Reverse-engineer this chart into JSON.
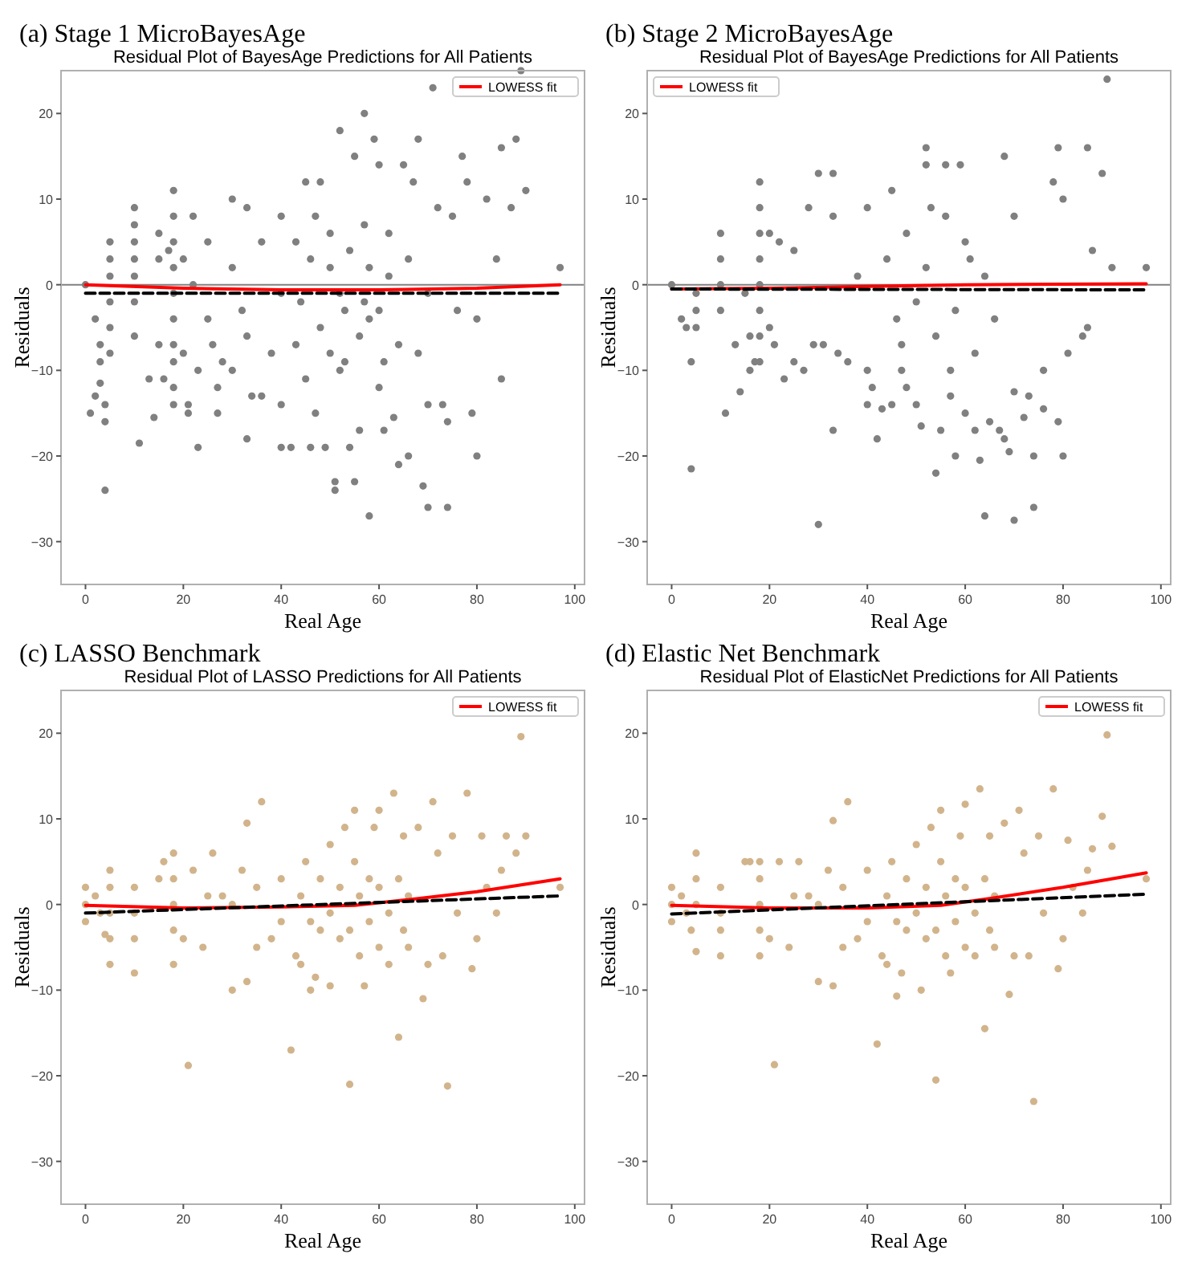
{
  "chart_data": [
    {
      "type": "scatter",
      "title": "(a) Stage 1 MicroBayesAge",
      "subtitle": "Residual Plot of BayesAge Predictions for All Patients",
      "xlabel": "Real Age",
      "ylabel": "Residuals",
      "xlim": [
        -5,
        102
      ],
      "ylim": [
        -35,
        25
      ],
      "xticks": [
        0,
        20,
        40,
        60,
        80,
        100
      ],
      "yticks": [
        -30,
        -20,
        -10,
        0,
        10,
        20
      ],
      "legend": "top right",
      "ref_lines": [
        {
          "axis": "y",
          "value": 0,
          "color": "#808080"
        }
      ],
      "series": [
        {
          "type": "scatter",
          "color": "#808080",
          "x": [
            0,
            1,
            2,
            2,
            3,
            3,
            3,
            4,
            4,
            4,
            5,
            5,
            5,
            5,
            5,
            5,
            10,
            10,
            10,
            10,
            10,
            10,
            10,
            11,
            13,
            14,
            15,
            15,
            15,
            16,
            17,
            18,
            18,
            18,
            18,
            18,
            18,
            18,
            18,
            18,
            18,
            20,
            20,
            21,
            21,
            22,
            22,
            23,
            23,
            25,
            25,
            26,
            27,
            27,
            28,
            30,
            30,
            30,
            32,
            33,
            33,
            33,
            34,
            36,
            36,
            38,
            40,
            40,
            40,
            40,
            42,
            43,
            45,
            45,
            46,
            47,
            48,
            49,
            50,
            50,
            51,
            51,
            52,
            52,
            53,
            54,
            55,
            55,
            56,
            57,
            57,
            58,
            58,
            59,
            60,
            60,
            61,
            62,
            63,
            64,
            65,
            66,
            67,
            68,
            68,
            69,
            70,
            70,
            71,
            72,
            73,
            74,
            74,
            75,
            76,
            77,
            78,
            79,
            80,
            80,
            82,
            84,
            85,
            85,
            87,
            88,
            89,
            90,
            97,
            44,
            46,
            48,
            50,
            52,
            54,
            56,
            58,
            60,
            62,
            64,
            66,
            70,
            47,
            53,
            57,
            61,
            43
          ],
          "values": [
            0,
            -15,
            -13,
            -4,
            -11.5,
            -9,
            -7,
            -16,
            -24,
            -14,
            5,
            3,
            1,
            -2,
            -5,
            -8,
            9,
            7,
            5,
            3,
            1,
            -2,
            -6,
            -18.5,
            -11,
            -15.5,
            6,
            3,
            -7,
            -11,
            4,
            11,
            8,
            5,
            2,
            -1,
            -4,
            -7,
            -9,
            -12,
            -14,
            3,
            -8,
            -14,
            -15,
            8,
            0,
            -19,
            -10,
            5,
            -4,
            -7,
            -12,
            -15,
            -9,
            10,
            2,
            -10,
            -3,
            9,
            -6,
            -18,
            -13,
            -13,
            5,
            -8,
            8,
            -1,
            -14,
            -19,
            -19,
            5,
            12,
            -11,
            -19,
            -15,
            12,
            -19,
            2,
            -8,
            -24,
            -23,
            18,
            -10,
            -3,
            -19,
            15,
            -23,
            -17,
            20,
            7,
            -27,
            -4,
            17,
            14,
            -12,
            -17,
            1,
            -15.5,
            -21,
            14,
            -20,
            12,
            17,
            -8,
            -23.5,
            -26,
            -14,
            23,
            9,
            -14,
            -26,
            -16,
            8,
            -3,
            15,
            12,
            -15,
            -20,
            -4,
            10,
            3,
            16,
            -11,
            9,
            17,
            25,
            11,
            2,
            -2,
            3,
            -5,
            6,
            -1,
            4,
            -6,
            2,
            -3,
            6,
            -7,
            3,
            -1,
            8,
            -9,
            -2,
            -9,
            -7
          ]
        },
        {
          "type": "line",
          "name": "LOWESS fit",
          "color": "#ff0000",
          "x": [
            0,
            20,
            40,
            60,
            80,
            97
          ],
          "values": [
            0,
            -0.4,
            -0.6,
            -0.6,
            -0.4,
            0
          ]
        },
        {
          "type": "line",
          "color": "#000000",
          "line_style": "dashed",
          "x": [
            0,
            97
          ],
          "values": [
            -1,
            -1
          ]
        }
      ]
    },
    {
      "type": "scatter",
      "title": "(b) Stage 2 MicroBayesAge",
      "subtitle": "Residual Plot of BayesAge Predictions for All Patients",
      "xlabel": "Real Age",
      "ylabel": "Residuals",
      "xlim": [
        -5,
        102
      ],
      "ylim": [
        -35,
        25
      ],
      "xticks": [
        0,
        20,
        40,
        60,
        80,
        100
      ],
      "yticks": [
        -30,
        -20,
        -10,
        0,
        10,
        20
      ],
      "legend": "top left",
      "ref_lines": [
        {
          "axis": "y",
          "value": 0,
          "color": "#808080"
        }
      ],
      "series": [
        {
          "type": "scatter",
          "color": "#808080",
          "x": [
            0,
            2,
            3,
            4,
            4,
            5,
            5,
            5,
            10,
            10,
            10,
            10,
            11,
            13,
            14,
            15,
            16,
            16,
            17,
            18,
            18,
            18,
            18,
            18,
            18,
            18,
            18,
            20,
            20,
            21,
            22,
            23,
            25,
            25,
            27,
            28,
            29,
            30,
            30,
            31,
            33,
            33,
            33,
            34,
            36,
            38,
            40,
            40,
            40,
            41,
            42,
            43,
            45,
            45,
            47,
            48,
            50,
            51,
            52,
            52,
            54,
            55,
            56,
            57,
            58,
            59,
            60,
            62,
            63,
            64,
            65,
            67,
            68,
            68,
            69,
            70,
            70,
            72,
            73,
            74,
            74,
            76,
            76,
            78,
            79,
            79,
            80,
            80,
            81,
            84,
            85,
            85,
            86,
            88,
            89,
            90,
            97,
            44,
            46,
            48,
            50,
            52,
            54,
            56,
            58,
            60,
            62,
            64,
            66,
            70,
            47,
            53,
            57,
            61
          ],
          "values": [
            0,
            -4,
            -5,
            -9,
            -21.5,
            -1,
            -3,
            -5,
            6,
            3,
            0,
            -3,
            -15,
            -7,
            -12.5,
            -1,
            -6,
            -10,
            -9,
            12,
            9,
            6,
            3,
            0,
            -3,
            -6,
            -9,
            6,
            -5,
            -7,
            5,
            -11,
            4,
            -9,
            -10,
            9,
            -7,
            13,
            -28,
            -7,
            13,
            -17,
            8,
            -8,
            -9,
            1,
            9,
            -10,
            -14,
            -12,
            -18,
            -14.5,
            11,
            -14,
            -10,
            -12,
            -14,
            -16.5,
            16,
            14,
            -22,
            -17,
            14,
            -13,
            -20,
            14,
            -15,
            -17,
            -20.5,
            -27,
            -16,
            -17,
            15,
            -18,
            -19.5,
            -27.5,
            -12.5,
            -15.5,
            -13,
            -26,
            -20,
            -10,
            -14.5,
            12,
            16,
            -16,
            -20,
            10,
            -8,
            -6,
            16,
            -5,
            4,
            13,
            24,
            2,
            2,
            3,
            -4,
            6,
            -2,
            2,
            -6,
            8,
            -3,
            5,
            -8,
            1,
            -4,
            8,
            -7,
            9,
            -10,
            3
          ]
        },
        {
          "type": "line",
          "name": "LOWESS fit",
          "color": "#ff0000",
          "x": [
            0,
            20,
            40,
            60,
            97
          ],
          "values": [
            -0.5,
            -0.4,
            -0.2,
            0,
            0.1
          ]
        },
        {
          "type": "line",
          "color": "#000000",
          "line_style": "dashed",
          "x": [
            0,
            97
          ],
          "values": [
            -0.5,
            -0.6
          ]
        }
      ]
    },
    {
      "type": "scatter",
      "title": "(c) LASSO Benchmark",
      "subtitle": "Residual Plot of LASSO Predictions for All Patients",
      "xlabel": "Real Age",
      "ylabel": "Residuals",
      "xlim": [
        -5,
        102
      ],
      "ylim": [
        -35,
        25
      ],
      "xticks": [
        0,
        20,
        40,
        60,
        80,
        100
      ],
      "yticks": [
        -30,
        -20,
        -10,
        0,
        10,
        20
      ],
      "legend": "top right",
      "series": [
        {
          "type": "scatter",
          "color": "#d2b48c",
          "x": [
            0,
            0,
            0,
            2,
            3,
            4,
            5,
            5,
            5,
            5,
            5,
            10,
            10,
            10,
            10,
            15,
            16,
            18,
            18,
            18,
            18,
            18,
            20,
            21,
            22,
            24,
            26,
            28,
            30,
            32,
            33,
            33,
            35,
            36,
            38,
            40,
            42,
            43,
            44,
            45,
            46,
            47,
            48,
            50,
            50,
            52,
            53,
            54,
            55,
            56,
            57,
            58,
            59,
            60,
            60,
            62,
            63,
            64,
            65,
            66,
            68,
            69,
            70,
            71,
            72,
            73,
            74,
            75,
            76,
            78,
            79,
            80,
            81,
            82,
            84,
            85,
            86,
            88,
            89,
            90,
            97,
            44,
            46,
            48,
            50,
            52,
            54,
            56,
            58,
            60,
            62,
            64,
            66,
            40,
            30,
            25,
            35,
            55,
            65
          ],
          "values": [
            2,
            0,
            -2,
            1,
            -1,
            -3.5,
            4,
            2,
            -1,
            -4,
            -7,
            2,
            -1,
            -4,
            -8,
            3,
            5,
            6,
            3,
            0,
            -3,
            -7,
            -4,
            -18.8,
            4,
            -5,
            6,
            1,
            -10,
            4,
            9.5,
            -9,
            -5,
            12,
            -4,
            3,
            -17,
            -6,
            -7,
            5,
            -10,
            -8.5,
            -3,
            7,
            -9.5,
            -4,
            9,
            -21,
            11,
            -6,
            -9.5,
            3,
            9,
            11,
            -5,
            -7,
            13,
            -15.5,
            8,
            -5,
            9,
            -11,
            -7,
            12,
            6,
            -6,
            -21.2,
            8,
            -1,
            13,
            -7.5,
            -4,
            8,
            2,
            -1,
            4,
            8,
            6,
            19.6,
            8,
            2,
            1,
            -2,
            3,
            -1,
            2,
            -3,
            1,
            -2,
            2,
            -1,
            3,
            1,
            -2,
            0,
            1,
            2,
            5,
            -3
          ]
        },
        {
          "type": "line",
          "name": "LOWESS fit",
          "color": "#ff0000",
          "x": [
            0,
            20,
            40,
            55,
            65,
            80,
            97
          ],
          "values": [
            -0.1,
            -0.4,
            -0.3,
            -0.1,
            0.5,
            1.5,
            3
          ]
        },
        {
          "type": "line",
          "color": "#000000",
          "line_style": "dashed",
          "x": [
            0,
            97
          ],
          "values": [
            -1,
            1
          ]
        }
      ]
    },
    {
      "type": "scatter",
      "title": "(d) Elastic Net Benchmark",
      "subtitle": "Residual Plot of ElasticNet Predictions for All Patients",
      "xlabel": "Real Age",
      "ylabel": "Residuals",
      "xlim": [
        -5,
        102
      ],
      "ylim": [
        -35,
        25
      ],
      "xticks": [
        0,
        20,
        40,
        60,
        80,
        100
      ],
      "yticks": [
        -30,
        -20,
        -10,
        0,
        10,
        20
      ],
      "legend": "top right",
      "series": [
        {
          "type": "scatter",
          "color": "#d2b48c",
          "x": [
            0,
            0,
            0,
            2,
            3,
            4,
            5,
            5,
            5,
            5,
            10,
            10,
            10,
            10,
            15,
            16,
            18,
            18,
            18,
            18,
            18,
            20,
            21,
            22,
            24,
            26,
            28,
            30,
            32,
            33,
            33,
            35,
            36,
            38,
            40,
            42,
            43,
            44,
            45,
            46,
            47,
            48,
            50,
            51,
            52,
            53,
            54,
            55,
            56,
            57,
            58,
            59,
            60,
            60,
            62,
            63,
            64,
            65,
            66,
            68,
            69,
            70,
            71,
            72,
            73,
            74,
            75,
            76,
            78,
            79,
            80,
            81,
            82,
            84,
            85,
            86,
            88,
            89,
            90,
            97,
            44,
            46,
            48,
            50,
            52,
            54,
            56,
            58,
            60,
            62,
            64,
            66,
            40,
            30,
            25,
            35,
            55,
            65
          ],
          "values": [
            2,
            0,
            -2,
            1,
            -1,
            -3,
            6,
            3,
            0,
            -5.5,
            2,
            -1,
            -3,
            -6,
            5,
            5,
            5,
            3,
            0,
            -3,
            -6,
            -4,
            -18.7,
            5,
            -5,
            5,
            1,
            -9,
            4,
            9.8,
            -9.5,
            -5,
            12,
            -4,
            4,
            -16.3,
            -6,
            -7,
            5,
            -10.7,
            -8,
            -3,
            7,
            -10,
            -4,
            9,
            -20.5,
            11,
            -6,
            -8,
            3,
            8,
            11.7,
            -5,
            -6,
            13.5,
            -14.5,
            8,
            -5,
            9.5,
            -10.5,
            -6,
            11,
            6,
            -6,
            -23,
            8,
            -1,
            13.5,
            -7.5,
            -4,
            7.5,
            2,
            -1,
            4,
            6.5,
            10.3,
            19.8,
            6.8,
            3,
            1,
            -2,
            3,
            -1,
            2,
            -3,
            1,
            -2,
            2,
            -1,
            3,
            1,
            -2,
            0,
            1,
            2,
            5,
            -3
          ]
        },
        {
          "type": "line",
          "name": "LOWESS fit",
          "color": "#ff0000",
          "x": [
            0,
            20,
            40,
            55,
            65,
            80,
            97
          ],
          "values": [
            -0.1,
            -0.4,
            -0.4,
            -0.1,
            0.7,
            2,
            3.7
          ]
        },
        {
          "type": "line",
          "color": "#000000",
          "line_style": "dashed",
          "x": [
            0,
            97
          ],
          "values": [
            -1.1,
            1.2
          ]
        }
      ]
    }
  ]
}
